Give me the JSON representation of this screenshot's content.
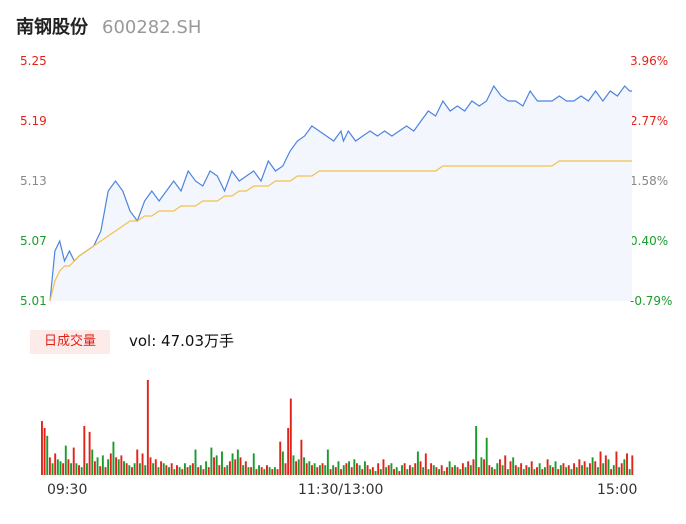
{
  "header": {
    "name": "南钢股份",
    "code": "600282.SH"
  },
  "colors": {
    "up": "#e2231a",
    "down": "#1a9c2d",
    "flat": "#888888",
    "price_line": "#4d84e0",
    "avg_line": "#f3c14e",
    "area_fill": "#f3f6fd"
  },
  "price_axis": {
    "left_labels": [
      "5.25",
      "5.19",
      "5.13",
      "5.07",
      "5.01"
    ],
    "right_labels": [
      "3.96%",
      "2.77%",
      "1.58%",
      "0.40%",
      "-0.79%"
    ]
  },
  "volume": {
    "tag": "日成交量",
    "text": "vol: 47.03万手"
  },
  "time_axis": {
    "labels": [
      "09:30",
      "11:30/13:00",
      "15:00"
    ]
  },
  "chart_data": [
    {
      "type": "line",
      "title": "",
      "xlabel": "",
      "ylabel": "",
      "ylim": [
        5.01,
        5.25
      ],
      "grid": false,
      "x": [
        0,
        2,
        4,
        6,
        8,
        10,
        12,
        15,
        18,
        21,
        24,
        27,
        30,
        33,
        36,
        39,
        42,
        45,
        48,
        51,
        54,
        57,
        60,
        63,
        66,
        69,
        72,
        75,
        78,
        81,
        84,
        87,
        90,
        93,
        96,
        99,
        102,
        105,
        108,
        111,
        114,
        117,
        120,
        121,
        123,
        126,
        129,
        132,
        135,
        138,
        141,
        144,
        147,
        150,
        153,
        156,
        159,
        162,
        165,
        168,
        171,
        174,
        177,
        180,
        183,
        186,
        189,
        192,
        195,
        198,
        201,
        204,
        207,
        210,
        213,
        216,
        219,
        222,
        225,
        228,
        231,
        234,
        237,
        239,
        240
      ],
      "series": [
        {
          "name": "price",
          "values": [
            5.01,
            5.06,
            5.07,
            5.05,
            5.06,
            5.05,
            5.055,
            5.06,
            5.065,
            5.08,
            5.12,
            5.13,
            5.12,
            5.1,
            5.09,
            5.11,
            5.12,
            5.11,
            5.12,
            5.13,
            5.12,
            5.14,
            5.13,
            5.125,
            5.14,
            5.135,
            5.12,
            5.14,
            5.13,
            5.135,
            5.14,
            5.13,
            5.15,
            5.14,
            5.145,
            5.16,
            5.17,
            5.175,
            5.185,
            5.18,
            5.175,
            5.17,
            5.18,
            5.17,
            5.18,
            5.17,
            5.175,
            5.18,
            5.175,
            5.18,
            5.175,
            5.18,
            5.185,
            5.18,
            5.19,
            5.2,
            5.195,
            5.21,
            5.2,
            5.205,
            5.2,
            5.21,
            5.205,
            5.21,
            5.225,
            5.215,
            5.21,
            5.21,
            5.205,
            5.22,
            5.21,
            5.21,
            5.21,
            5.215,
            5.21,
            5.21,
            5.215,
            5.21,
            5.22,
            5.21,
            5.22,
            5.215,
            5.225,
            5.22,
            5.22
          ]
        },
        {
          "name": "avg",
          "values": [
            5.01,
            5.03,
            5.04,
            5.045,
            5.045,
            5.05,
            5.055,
            5.06,
            5.065,
            5.07,
            5.075,
            5.08,
            5.085,
            5.09,
            5.09,
            5.095,
            5.095,
            5.1,
            5.1,
            5.1,
            5.105,
            5.105,
            5.105,
            5.11,
            5.11,
            5.11,
            5.115,
            5.115,
            5.12,
            5.12,
            5.125,
            5.125,
            5.125,
            5.13,
            5.13,
            5.13,
            5.135,
            5.135,
            5.135,
            5.14,
            5.14,
            5.14,
            5.14,
            5.14,
            5.14,
            5.14,
            5.14,
            5.14,
            5.14,
            5.14,
            5.14,
            5.14,
            5.14,
            5.14,
            5.14,
            5.14,
            5.14,
            5.145,
            5.145,
            5.145,
            5.145,
            5.145,
            5.145,
            5.145,
            5.145,
            5.145,
            5.145,
            5.145,
            5.145,
            5.145,
            5.145,
            5.145,
            5.145,
            5.15,
            5.15,
            5.15,
            5.15,
            5.15,
            5.15,
            5.15,
            5.15,
            5.15,
            5.15,
            5.15,
            5.15
          ]
        }
      ]
    },
    {
      "type": "bar",
      "title": "",
      "xlabel": "",
      "ylabel": "",
      "ylim": [
        0,
        100
      ],
      "grid": false,
      "values": [
        55,
        48,
        40,
        18,
        12,
        22,
        16,
        14,
        12,
        30,
        16,
        12,
        28,
        12,
        10,
        8,
        50,
        12,
        44,
        26,
        14,
        18,
        9,
        20,
        8,
        16,
        22,
        34,
        18,
        16,
        20,
        14,
        12,
        10,
        8,
        12,
        26,
        12,
        22,
        10,
        97,
        18,
        12,
        16,
        8,
        14,
        12,
        10,
        8,
        12,
        6,
        10,
        8,
        6,
        12,
        8,
        10,
        12,
        26,
        8,
        10,
        6,
        14,
        8,
        28,
        18,
        20,
        10,
        24,
        8,
        10,
        14,
        22,
        16,
        26,
        18,
        10,
        14,
        8,
        8,
        22,
        6,
        10,
        8,
        6,
        10,
        8,
        6,
        8,
        6,
        34,
        24,
        12,
        48,
        78,
        20,
        14,
        16,
        36,
        18,
        12,
        14,
        10,
        12,
        8,
        10,
        12,
        10,
        26,
        6,
        10,
        8,
        14,
        6,
        10,
        12,
        14,
        8,
        16,
        12,
        10,
        6,
        14,
        10,
        6,
        8,
        4,
        12,
        6,
        16,
        8,
        10,
        12,
        6,
        8,
        4,
        10,
        12,
        6,
        10,
        8,
        12,
        24,
        14,
        8,
        22,
        6,
        12,
        10,
        8,
        6,
        10,
        4,
        8,
        14,
        8,
        10,
        8,
        6,
        12,
        8,
        14,
        10,
        16,
        50,
        8,
        18,
        16,
        38,
        10,
        8,
        6,
        12,
        16,
        10,
        20,
        6,
        14,
        18,
        10,
        8,
        12,
        6,
        10,
        8,
        14,
        6,
        8,
        12,
        6,
        8,
        16,
        10,
        8,
        14,
        6,
        10,
        12,
        8,
        10,
        6,
        12,
        8,
        16,
        10,
        14,
        8,
        12,
        18,
        14,
        8,
        24,
        12,
        20,
        16,
        6,
        10,
        24,
        8,
        12,
        16,
        22,
        6,
        20
      ],
      "colors": [
        "up",
        "up",
        "down",
        "up",
        "down",
        "up",
        "down",
        "down",
        "up",
        "down",
        "up",
        "down",
        "up",
        "down",
        "up",
        "down",
        "up",
        "down",
        "up",
        "down",
        "up",
        "down",
        "up",
        "down",
        "up",
        "down",
        "up",
        "down",
        "up",
        "down",
        "up",
        "down",
        "up",
        "down",
        "up",
        "down",
        "up",
        "down",
        "up",
        "down",
        "up",
        "up",
        "down",
        "up",
        "down",
        "up",
        "down",
        "up",
        "down",
        "up",
        "down",
        "up",
        "down",
        "up",
        "down",
        "up",
        "down",
        "up",
        "down",
        "up",
        "down",
        "up",
        "down",
        "up",
        "down",
        "up",
        "down",
        "up",
        "down",
        "up",
        "down",
        "up",
        "down",
        "up",
        "down",
        "up",
        "down",
        "up",
        "down",
        "up",
        "down",
        "up",
        "down",
        "up",
        "down",
        "up",
        "down",
        "up",
        "down",
        "up",
        "up",
        "down",
        "up",
        "up",
        "up",
        "down",
        "up",
        "down",
        "up",
        "down",
        "up",
        "down",
        "up",
        "down",
        "up",
        "down",
        "up",
        "down",
        "down",
        "up",
        "down",
        "up",
        "down",
        "up",
        "down",
        "up",
        "down",
        "up",
        "down",
        "up",
        "down",
        "up",
        "down",
        "up",
        "down",
        "up",
        "down",
        "up",
        "down",
        "up",
        "down",
        "up",
        "down",
        "up",
        "down",
        "up",
        "down",
        "up",
        "down",
        "up",
        "down",
        "up",
        "down",
        "up",
        "down",
        "up",
        "down",
        "up",
        "down",
        "up",
        "down",
        "up",
        "down",
        "up",
        "down",
        "up",
        "down",
        "up",
        "down",
        "up",
        "down",
        "up",
        "down",
        "up",
        "down",
        "up",
        "down",
        "up",
        "down",
        "up",
        "down",
        "up",
        "down",
        "up",
        "down",
        "up",
        "down",
        "up",
        "down",
        "up",
        "down",
        "up",
        "down",
        "up",
        "down",
        "up",
        "down",
        "up",
        "down",
        "up",
        "down",
        "up",
        "down",
        "up",
        "down",
        "up",
        "down",
        "up",
        "down",
        "up",
        "down",
        "up",
        "down",
        "up",
        "down",
        "up",
        "down",
        "up",
        "down",
        "up",
        "down",
        "up",
        "down",
        "up",
        "down",
        "up",
        "down",
        "up",
        "down",
        "up",
        "down",
        "up",
        "down",
        "up",
        "down",
        "up",
        "down",
        "up",
        "down",
        "up",
        "down",
        "up",
        "down",
        "flat"
      ]
    }
  ]
}
